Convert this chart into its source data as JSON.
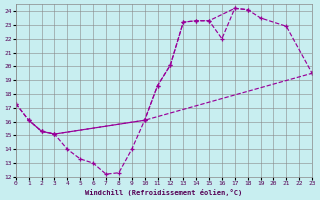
{
  "bg_color": "#c8eef0",
  "grid_color": "#888888",
  "line_color": "#990099",
  "xlabel": "Windchill (Refroidissement éolien,°C)",
  "xlim": [
    0,
    23
  ],
  "ylim": [
    12,
    24.5
  ],
  "xticks": [
    0,
    1,
    2,
    3,
    4,
    5,
    6,
    7,
    8,
    9,
    10,
    11,
    12,
    13,
    14,
    15,
    16,
    17,
    18,
    19,
    20,
    21,
    22,
    23
  ],
  "yticks": [
    12,
    13,
    14,
    15,
    16,
    17,
    18,
    19,
    20,
    21,
    22,
    23,
    24
  ],
  "curve1_x": [
    0,
    1,
    2,
    3,
    4,
    5,
    6,
    7,
    8,
    9,
    10,
    11,
    12,
    13,
    14,
    15,
    16,
    17,
    18
  ],
  "curve1_y": [
    17.3,
    16.1,
    15.3,
    15.1,
    14.0,
    13.3,
    13.0,
    12.2,
    12.3,
    14.0,
    16.1,
    18.6,
    20.1,
    23.2,
    23.3,
    23.3,
    22.0,
    24.2,
    24.1
  ],
  "curve2_x": [
    0,
    1,
    2,
    3,
    10,
    23
  ],
  "curve2_y": [
    17.3,
    16.1,
    15.3,
    15.1,
    16.1,
    19.5
  ],
  "curve3_x": [
    1,
    2,
    3,
    10,
    11,
    12,
    13,
    14,
    15,
    17,
    18,
    19,
    21,
    23
  ],
  "curve3_y": [
    16.1,
    15.3,
    15.1,
    16.1,
    18.6,
    20.1,
    23.2,
    23.3,
    23.3,
    24.2,
    24.1,
    23.5,
    22.9,
    19.5
  ]
}
